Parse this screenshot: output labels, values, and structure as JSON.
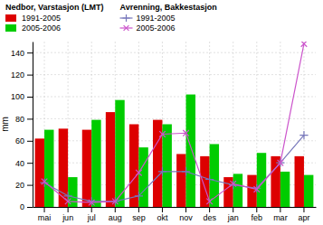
{
  "chart_data": {
    "type": "bar",
    "categories": [
      "mai",
      "jun",
      "jul",
      "aug",
      "sep",
      "okt",
      "nov",
      "des",
      "jan",
      "feb",
      "mar",
      "apr"
    ],
    "series": [
      {
        "name": "1991-2005",
        "type": "bar",
        "color": "#dd0000",
        "values": [
          62,
          71,
          70,
          86,
          75,
          79,
          48,
          46,
          27,
          29,
          46,
          46
        ]
      },
      {
        "name": "2005-2006",
        "type": "bar",
        "color": "#00cc00",
        "values": [
          70,
          27,
          79,
          97,
          54,
          75,
          102,
          57,
          30,
          49,
          32,
          29
        ]
      },
      {
        "name": "1991-2005",
        "type": "line",
        "color": "#7777bb",
        "marker": "plus",
        "values": [
          22,
          10,
          5,
          5,
          10,
          32,
          32,
          25,
          20,
          17,
          40,
          65
        ]
      },
      {
        "name": "2005-2006",
        "type": "line",
        "color": "#cc55cc",
        "marker": "x",
        "values": [
          23,
          5,
          4,
          5,
          31,
          66,
          67,
          5,
          21,
          16,
          40,
          148
        ]
      }
    ],
    "legend_titles": {
      "bar": "Nedbor, Varstasjon (LMT)",
      "line": "Avrenning, Bakkestasjon"
    },
    "ylabel": "mm",
    "ylim": [
      0,
      150
    ],
    "yticks": [
      0,
      20,
      40,
      60,
      80,
      100,
      120,
      140
    ],
    "grid": true,
    "legend": "upper left"
  }
}
